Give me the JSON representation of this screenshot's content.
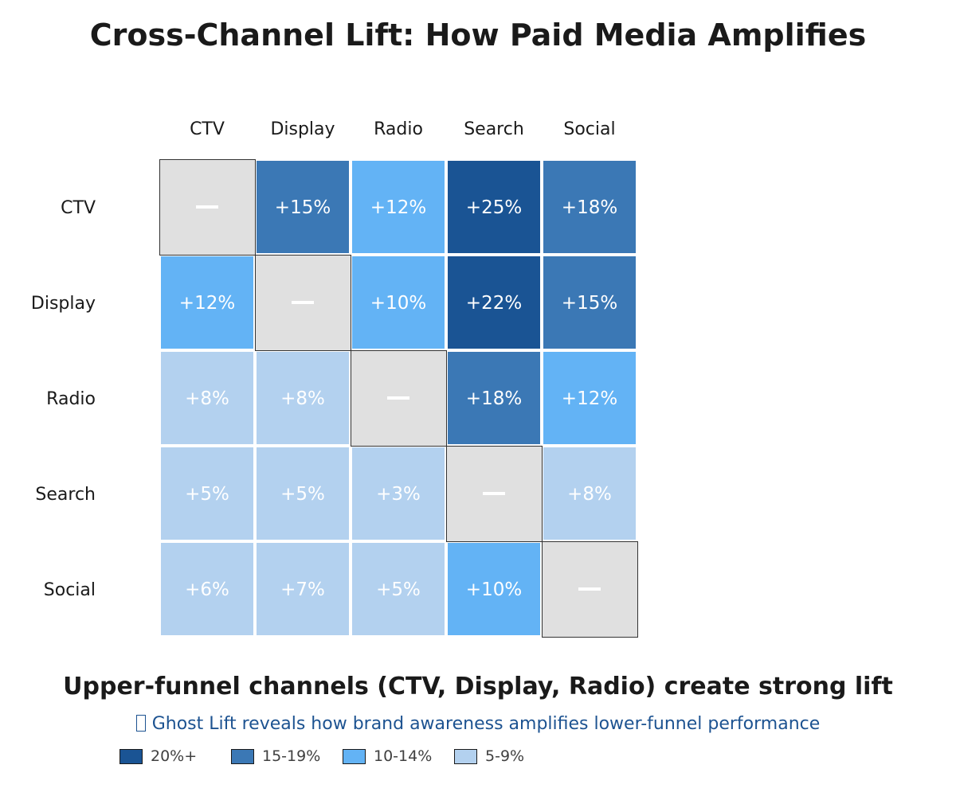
{
  "title": "Cross-Channel Lift: How Paid Media Amplifies",
  "subtitle": "Upper-funnel channels (CTV, Display, Radio) create strong lift",
  "note": {
    "icon": "missing-glyph-icon",
    "text": "Ghost Lift reveals how brand awareness amplifies lower-funnel performance"
  },
  "chart_data": {
    "type": "heatmap",
    "title": "Cross-Channel Lift: How Paid Media Amplifies",
    "rows": [
      "CTV",
      "Display",
      "Radio",
      "Search",
      "Social"
    ],
    "columns": [
      "CTV",
      "Display",
      "Radio",
      "Search",
      "Social"
    ],
    "values": [
      [
        null,
        15,
        12,
        25,
        18
      ],
      [
        12,
        null,
        10,
        22,
        15
      ],
      [
        8,
        8,
        null,
        18,
        12
      ],
      [
        5,
        5,
        3,
        null,
        8
      ],
      [
        6,
        7,
        5,
        10,
        null
      ]
    ],
    "labels": [
      [
        "—",
        "+15%",
        "+12%",
        "+25%",
        "+18%"
      ],
      [
        "+12%",
        "—",
        "+10%",
        "+22%",
        "+15%"
      ],
      [
        "+8%",
        "+8%",
        "—",
        "+18%",
        "+12%"
      ],
      [
        "+5%",
        "+5%",
        "+3%",
        "—",
        "+8%"
      ],
      [
        "+6%",
        "+7%",
        "+5%",
        "+10%",
        "—"
      ]
    ],
    "diagonal_color": "#e0e0e0",
    "legend": [
      {
        "label": "20%+",
        "min": 20,
        "color": "#1a5494"
      },
      {
        "label": "15-19%",
        "min": 15,
        "color": "#3b78b5"
      },
      {
        "label": "10-14%",
        "min": 10,
        "color": "#63b3f5"
      },
      {
        "label": "5-9%",
        "min": 0,
        "color": "#b3d1ef"
      }
    ],
    "legend_position": "bottom-left",
    "units": "percent lift"
  }
}
